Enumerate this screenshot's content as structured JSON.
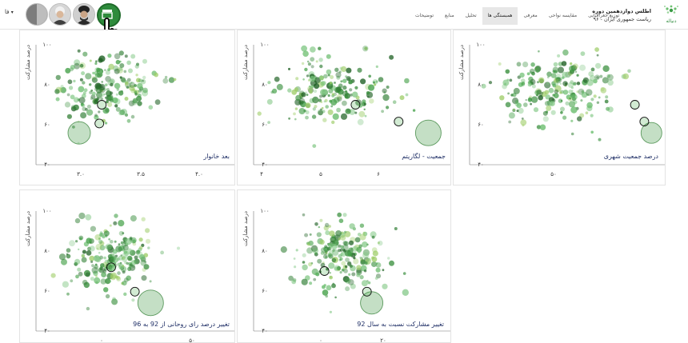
{
  "header": {
    "lang": "فا",
    "brand_line1": "اطلس دوازدهمین دوره",
    "brand_line2": "ریاست جمهوری ایران - ۹۶",
    "logo_text": "دنیاله",
    "tabs": [
      "توزیع جغرافیایی",
      "مقایسه نواحی",
      "معرفی",
      "همبستگی ها",
      "تحلیل",
      "منابع",
      "توضیحات"
    ],
    "active_tab": "همبستگی ها"
  },
  "charts_common": {
    "ylabel": "درصد مشارکت",
    "yticks": [
      "۱۰۰",
      "۸۰",
      "۶۰",
      "۴۰"
    ]
  },
  "panels": [
    {
      "title": "بعد خانوار",
      "xticks": [
        "۳.۰",
        "۳.۵",
        "۴.۰"
      ]
    },
    {
      "title": "جمعیت - لگاریتم",
      "xticks": [
        "۴",
        "۵",
        "۶"
      ]
    },
    {
      "title": "درصد جمعیت شهری",
      "xticks": [
        "۵۰"
      ]
    },
    {
      "title": "تغییر درصد رای روحانی از 92 به 96",
      "xticks": [
        "۰",
        "۵۰"
      ]
    },
    {
      "title": "تغییر مشارکت نسبت به سال 92",
      "xticks": [
        "۰",
        "۲۰"
      ]
    }
  ],
  "chart_data": [
    {
      "type": "scatter",
      "title": "بعد خانوار",
      "ylabel": "درصد مشارکت",
      "xlim": [
        2.8,
        4.3
      ],
      "ylim": [
        38,
        102
      ],
      "clusters": [
        {
          "cx": 3.25,
          "cy": 80,
          "sx": 0.22,
          "sy": 9,
          "n": 200
        }
      ],
      "highlights": [
        {
          "x": 3.2,
          "y": 60
        },
        {
          "x": 3.22,
          "y": 70
        }
      ],
      "big": [
        {
          "x": 3.03,
          "y": 55,
          "r": 14
        }
      ]
    },
    {
      "type": "scatter",
      "title": "جمعیت - لگاریتم",
      "ylabel": "درصد مشارکت",
      "xlim": [
        3.6,
        7.1
      ],
      "ylim": [
        38,
        102
      ],
      "clusters": [
        {
          "cx": 4.95,
          "cy": 77,
          "sx": 0.55,
          "sy": 9,
          "n": 200
        }
      ],
      "highlights": [
        {
          "x": 6.2,
          "y": 61
        },
        {
          "x": 5.4,
          "y": 70
        }
      ],
      "big": [
        {
          "x": 6.75,
          "y": 55,
          "r": 16
        }
      ]
    },
    {
      "type": "scatter",
      "title": "درصد جمعیت شهری",
      "ylabel": "درصد مشارکت",
      "xlim": [
        20,
        100
      ],
      "ylim": [
        38,
        102
      ],
      "clusters": [
        {
          "cx": 55,
          "cy": 78,
          "sx": 13,
          "sy": 9,
          "n": 210
        }
      ],
      "highlights": [
        {
          "x": 92,
          "y": 61
        },
        {
          "x": 88,
          "y": 70
        }
      ],
      "big": [
        {
          "x": 95,
          "y": 55,
          "r": 13
        }
      ]
    },
    {
      "type": "scatter",
      "title": "تغییر درصد رای روحانی از 92 به 96",
      "ylabel": "درصد مشارکت",
      "xlim": [
        -30,
        60
      ],
      "ylim": [
        38,
        102
      ],
      "clusters": [
        {
          "cx": 0,
          "cy": 77,
          "sx": 10,
          "sy": 9,
          "n": 210
        }
      ],
      "highlights": [
        {
          "x": 12,
          "y": 59
        },
        {
          "x": 0,
          "y": 72
        }
      ],
      "big": [
        {
          "x": 20,
          "y": 53,
          "r": 16
        }
      ]
    },
    {
      "type": "scatter",
      "title": "تغییر مشارکت نسبت به سال 92",
      "ylabel": "درصد مشارکت",
      "xlim": [
        -10,
        30
      ],
      "ylim": [
        38,
        102
      ],
      "clusters": [
        {
          "cx": 7,
          "cy": 78,
          "sx": 5,
          "sy": 9,
          "n": 210
        }
      ],
      "highlights": [
        {
          "x": 13,
          "y": 59
        },
        {
          "x": 4,
          "y": 70
        }
      ],
      "big": [
        {
          "x": 14,
          "y": 53,
          "r": 14
        }
      ]
    }
  ]
}
